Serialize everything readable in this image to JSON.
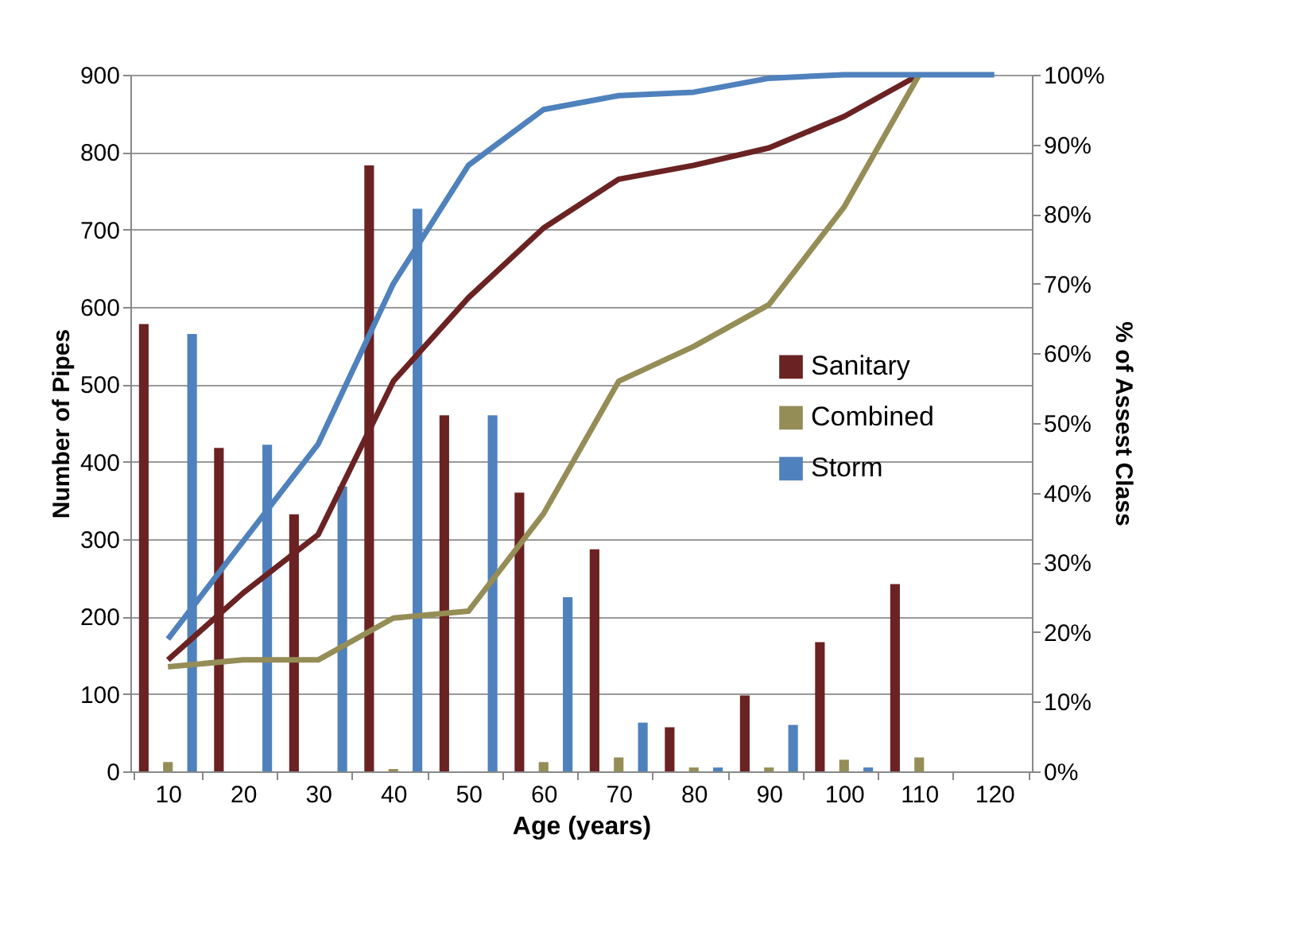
{
  "chart_data": {
    "type": "bar",
    "xlabel": "Age (years)",
    "ylabel": "Number of Pipes",
    "y2label": "% of Assest Class",
    "categories": [
      "10",
      "20",
      "30",
      "40",
      "50",
      "60",
      "70",
      "80",
      "90",
      "100",
      "110",
      "120"
    ],
    "series": [
      {
        "name": "Sanitary",
        "color": "#6b2222",
        "values": [
          578,
          418,
          332,
          783,
          460,
          360,
          287,
          57,
          98,
          167,
          242,
          0
        ]
      },
      {
        "name": "Combined",
        "color": "#958d56",
        "values": [
          12,
          0,
          0,
          3,
          0,
          12,
          18,
          5,
          5,
          15,
          18,
          0
        ]
      },
      {
        "name": "Storm",
        "color": "#4f81bd",
        "values": [
          565,
          422,
          368,
          727,
          460,
          225,
          63,
          5,
          60,
          5,
          0,
          0
        ]
      },
      {
        "type": "line",
        "axis": "y2",
        "color": "#6b2222",
        "values": [
          16,
          25.6,
          34,
          56,
          68,
          78,
          85,
          87,
          89.5,
          94,
          100,
          null
        ]
      },
      {
        "type": "line",
        "axis": "y2",
        "color": "#958d56",
        "values": [
          15,
          16,
          16,
          22,
          23,
          37,
          56,
          61,
          67,
          81,
          100,
          null
        ]
      },
      {
        "type": "line",
        "axis": "y2",
        "color": "#4f81bd",
        "values": [
          19,
          33,
          47,
          70,
          87,
          95,
          97,
          97.5,
          99.5,
          100,
          100,
          100
        ]
      }
    ],
    "ylim": [
      0,
      900
    ],
    "yticks": [
      0,
      100,
      200,
      300,
      400,
      500,
      600,
      700,
      800,
      900
    ],
    "y2lim": [
      0,
      100
    ],
    "y2ticks": [
      {
        "value": 0,
        "label": "0%"
      },
      {
        "value": 10,
        "label": "10%"
      },
      {
        "value": 20,
        "label": "20%"
      },
      {
        "value": 30,
        "label": "30%"
      },
      {
        "value": 40,
        "label": "40%"
      },
      {
        "value": 50,
        "label": "50%"
      },
      {
        "value": 60,
        "label": "60%"
      },
      {
        "value": 70,
        "label": "70%"
      },
      {
        "value": 80,
        "label": "80%"
      },
      {
        "value": 90,
        "label": "90%"
      },
      {
        "value": 100,
        "label": "100%"
      }
    ],
    "grid": "y",
    "legend": "right"
  }
}
